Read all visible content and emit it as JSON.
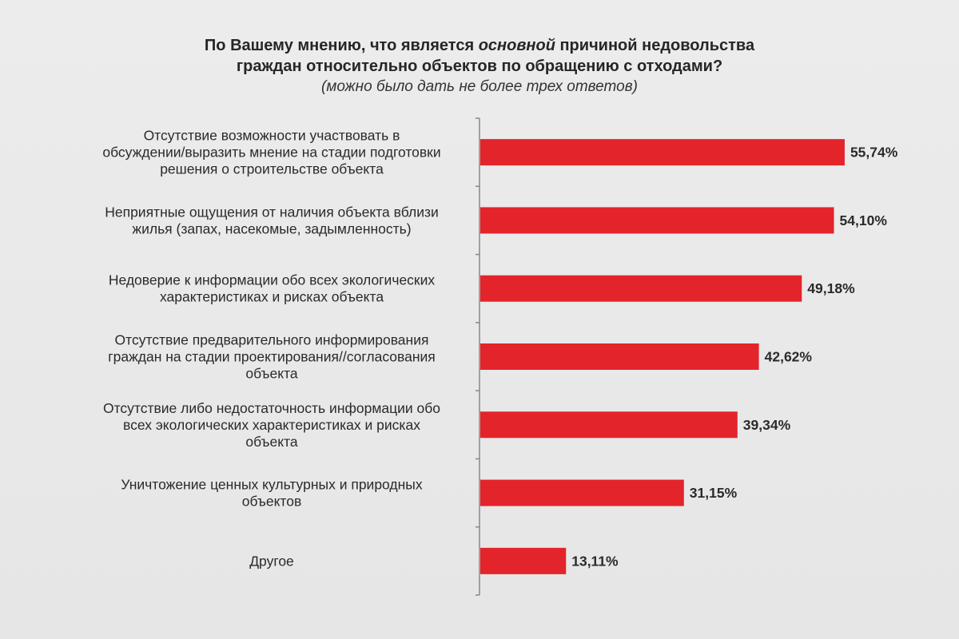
{
  "chart_data": {
    "type": "bar",
    "orientation": "horizontal",
    "title": {
      "before_emphasis": "По Вашему мнению, что является ",
      "emphasis": "основной",
      "after_emphasis": " причиной недовольства",
      "line2": "граждан относительно объектов по обращению с отходами?"
    },
    "subtitle": "(можно было дать не более трех ответов)",
    "bar_color": "#e3242b",
    "axis_color": "#888888",
    "xlim": [
      0,
      60
    ],
    "categories": [
      [
        "Отсутствие возможности участвовать в",
        "обсуждении/выразить мнение на стадии подготовки",
        "решения о строительстве объекта"
      ],
      [
        "Неприятные ощущения от наличия объекта вблизи",
        "жилья (запах, насекомые, задымленность)"
      ],
      [
        "Недоверие к информации обо всех экологических",
        "характеристиках и рисках объекта"
      ],
      [
        "Отсутствие предварительного информирования",
        "граждан на стадии проектирования//согласования",
        "объекта"
      ],
      [
        "Отсутствие либо недостаточность информации обо",
        "всех экологических характеристиках и рисках",
        "объекта"
      ],
      [
        "Уничтожение ценных культурных и природных",
        "объектов"
      ],
      [
        "Другое"
      ]
    ],
    "values": [
      55.74,
      54.1,
      49.18,
      42.62,
      39.34,
      31.15,
      13.11
    ],
    "value_labels": [
      "55,74%",
      "54,10%",
      "49,18%",
      "42,62%",
      "39,34%",
      "31,15%",
      "13,11%"
    ]
  }
}
